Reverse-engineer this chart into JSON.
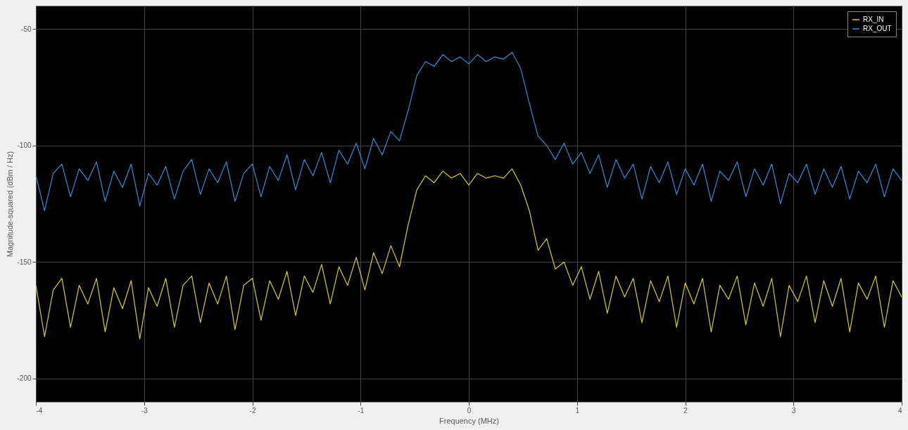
{
  "chart_data": {
    "type": "line",
    "xlabel": "Frequency (MHz)",
    "ylabel": "Magnitude-squared (dBm / Hz)",
    "xlim": [
      -4,
      4
    ],
    "xticks": [
      -4,
      -3,
      -2,
      -1,
      0,
      1,
      2,
      3,
      4
    ],
    "ylim": [
      -210,
      -40
    ],
    "yticks": [
      -200,
      -150,
      -100,
      -50
    ],
    "grid": true,
    "legend": "top right",
    "line_style": "solid",
    "marker": "none",
    "x": [
      -4.0,
      -3.92,
      -3.84,
      -3.76,
      -3.68,
      -3.6,
      -3.52,
      -3.44,
      -3.36,
      -3.28,
      -3.2,
      -3.12,
      -3.04,
      -2.96,
      -2.88,
      -2.8,
      -2.72,
      -2.64,
      -2.56,
      -2.48,
      -2.4,
      -2.32,
      -2.24,
      -2.16,
      -2.08,
      -2.0,
      -1.92,
      -1.84,
      -1.76,
      -1.68,
      -1.6,
      -1.52,
      -1.44,
      -1.36,
      -1.28,
      -1.2,
      -1.12,
      -1.04,
      -0.96,
      -0.88,
      -0.8,
      -0.72,
      -0.64,
      -0.56,
      -0.48,
      -0.4,
      -0.32,
      -0.24,
      -0.16,
      -0.08,
      0.0,
      0.08,
      0.16,
      0.24,
      0.32,
      0.4,
      0.48,
      0.56,
      0.64,
      0.72,
      0.8,
      0.88,
      0.96,
      1.04,
      1.12,
      1.2,
      1.28,
      1.36,
      1.44,
      1.52,
      1.6,
      1.68,
      1.76,
      1.84,
      1.92,
      2.0,
      2.08,
      2.16,
      2.24,
      2.32,
      2.4,
      2.48,
      2.56,
      2.64,
      2.72,
      2.8,
      2.88,
      2.96,
      3.04,
      3.12,
      3.2,
      3.28,
      3.36,
      3.44,
      3.52,
      3.6,
      3.68,
      3.76,
      3.84,
      3.92,
      4.0
    ],
    "series": [
      {
        "name": "RX_IN",
        "color": "#d8cf1c",
        "values": [
          -160,
          -182,
          -162,
          -157,
          -178,
          -160,
          -168,
          -157,
          -180,
          -161,
          -170,
          -158,
          -183,
          -161,
          -169,
          -157,
          -178,
          -160,
          -156,
          -176,
          -159,
          -168,
          -156,
          -179,
          -160,
          -157,
          -175,
          -158,
          -166,
          -154,
          -173,
          -156,
          -163,
          -151,
          -168,
          -152,
          -160,
          -148,
          -162,
          -146,
          -155,
          -143,
          -152,
          -134,
          -119,
          -113,
          -116,
          -111,
          -114,
          -112,
          -117,
          -112,
          -114,
          -113,
          -114,
          -110,
          -117,
          -128,
          -145,
          -140,
          -153,
          -150,
          -160,
          -152,
          -166,
          -154,
          -172,
          -156,
          -165,
          -157,
          -176,
          -158,
          -167,
          -156,
          -178,
          -159,
          -168,
          -157,
          -180,
          -160,
          -166,
          -156,
          -177,
          -159,
          -169,
          -157,
          -182,
          -160,
          -167,
          -156,
          -176,
          -158,
          -169,
          -157,
          -180,
          -159,
          -166,
          -156,
          -178,
          -158,
          -165
        ]
      },
      {
        "name": "RX_OUT",
        "color": "#2f8fd8",
        "values": [
          -113,
          -128,
          -112,
          -108,
          -122,
          -110,
          -115,
          -107,
          -124,
          -111,
          -118,
          -108,
          -126,
          -112,
          -117,
          -109,
          -123,
          -111,
          -106,
          -121,
          -110,
          -116,
          -107,
          -124,
          -112,
          -108,
          -122,
          -109,
          -115,
          -104,
          -119,
          -106,
          -113,
          -103,
          -116,
          -102,
          -108,
          -99,
          -110,
          -97,
          -104,
          -94,
          -98,
          -85,
          -70,
          -64,
          -66,
          -61,
          -64,
          -62,
          -65,
          -61,
          -64,
          -62,
          -63,
          -60,
          -67,
          -82,
          -96,
          -100,
          -106,
          -99,
          -108,
          -103,
          -112,
          -104,
          -118,
          -106,
          -114,
          -108,
          -123,
          -109,
          -116,
          -107,
          -121,
          -110,
          -117,
          -108,
          -124,
          -111,
          -115,
          -107,
          -122,
          -110,
          -117,
          -108,
          -125,
          -112,
          -116,
          -108,
          -121,
          -110,
          -118,
          -109,
          -123,
          -111,
          -116,
          -108,
          -122,
          -110,
          -115
        ]
      }
    ]
  }
}
